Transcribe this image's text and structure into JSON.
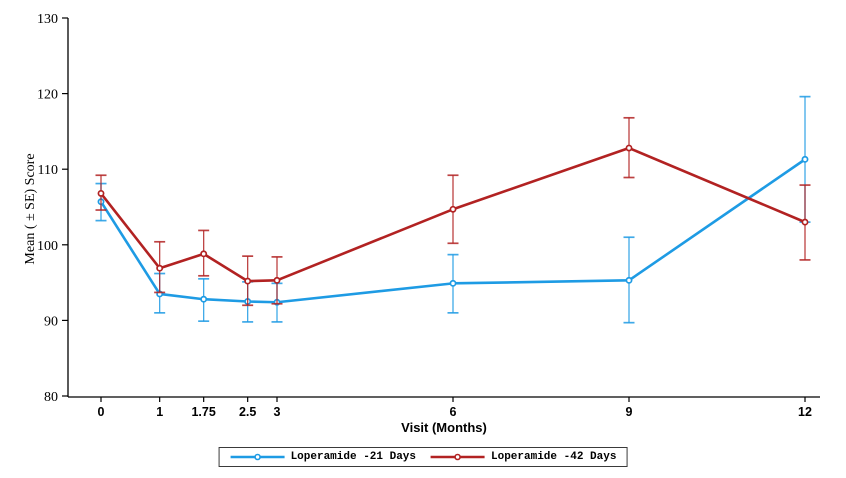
{
  "ui": {
    "background_color": "#ffffff",
    "axis_color": "#000000"
  },
  "chart_data": {
    "type": "line",
    "title": "",
    "xlabel": "Visit (Months)",
    "ylabel": "Mean ( ± SE) Score",
    "error_bar_type": "SE",
    "grid": false,
    "legend_position": "bottom-center",
    "x_ticks": [
      0,
      1,
      1.75,
      2.5,
      3,
      6,
      9,
      12
    ],
    "y_ticks": [
      80,
      90,
      100,
      110,
      120,
      130
    ],
    "ylim": [
      80,
      130
    ],
    "xlim": [
      -0.55,
      12.3
    ],
    "series": [
      {
        "name": "Loperamide -21 Days",
        "color": "#1E9BE4",
        "marker": "circle",
        "x": [
          0,
          1,
          1.75,
          2.5,
          3,
          6,
          9,
          12
        ],
        "y": [
          105.7,
          93.5,
          92.8,
          92.5,
          92.4,
          94.9,
          95.3,
          111.3
        ],
        "err_low": [
          103.2,
          91.0,
          89.9,
          89.8,
          89.8,
          91.0,
          89.7,
          103.0
        ],
        "err_high": [
          108.1,
          96.2,
          95.5,
          95.1,
          94.9,
          98.7,
          101.0,
          119.6
        ]
      },
      {
        "name": "Loperamide -42 Days",
        "color": "#B22222",
        "marker": "circle",
        "x": [
          0,
          1,
          1.75,
          2.5,
          3,
          6,
          9,
          12
        ],
        "y": [
          106.8,
          96.9,
          98.8,
          95.2,
          95.3,
          104.7,
          112.8,
          103.0
        ],
        "err_low": [
          104.6,
          93.7,
          95.9,
          92.0,
          92.2,
          100.2,
          108.9,
          98.0
        ],
        "err_high": [
          109.2,
          100.4,
          101.9,
          98.5,
          98.4,
          109.2,
          116.8,
          107.9
        ]
      }
    ]
  }
}
